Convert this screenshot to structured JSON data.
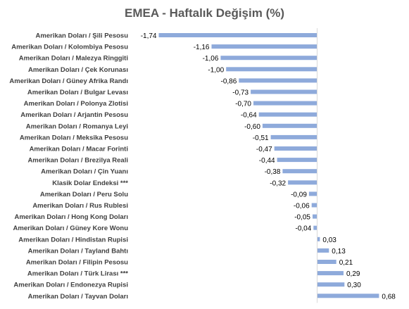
{
  "chart_data": {
    "type": "bar",
    "orientation": "horizontal",
    "title": "EMEA - Haftalık Değişim (%)",
    "xlabel": "",
    "ylabel": "",
    "xlim": [
      -1.8,
      0.7
    ],
    "grid": false,
    "legend": "none",
    "bar_color": "#8EAADB",
    "categories": [
      "Amerikan Doları / Şili Pesosu",
      "Amerikan Doları / Kolombiya Pesosu",
      "Amerikan Doları / Malezya Ringgiti",
      "Amerikan Doları / Çek Korunası",
      "Amerikan Doları / Güney Afrika Randı",
      "Amerikan Doları / Bulgar Levası",
      "Amerikan Doları / Polonya Zlotisi",
      "Amerikan Doları / Arjantin Pesosu",
      "Amerikan Doları / Romanya Leyi",
      "Amerikan Doları / Meksika Pesosu",
      "Amerikan Doları / Macar Forinti",
      "Amerikan Doları / Brezilya Reali",
      "Amerikan Doları / Çin Yuanı",
      "Klasik Dolar Endeksi ***",
      "Amerikan Doları / Peru Solu",
      "Amerikan Doları / Rus Rublesi",
      "Amerikan Doları / Hong Kong Doları",
      "Amerikan Doları / Güney Kore Wonu",
      "Amerikan Doları / Hindistan Rupisi",
      "Amerikan Doları / Tayland Bahtı",
      "Amerikan Doları / Filipin Pesosu",
      "Amerikan Doları / Türk Lirası ***",
      "Amerikan Doları / Endonezya Rupisi",
      "Amerikan Doları / Tayvan Doları"
    ],
    "values": [
      -1.74,
      -1.16,
      -1.06,
      -1.0,
      -0.86,
      -0.73,
      -0.7,
      -0.64,
      -0.6,
      -0.51,
      -0.47,
      -0.44,
      -0.38,
      -0.32,
      -0.09,
      -0.06,
      -0.05,
      -0.04,
      0.03,
      0.13,
      0.21,
      0.29,
      0.3,
      0.68
    ],
    "value_labels": [
      "-1,74",
      "-1,16",
      "-1,06",
      "-1,00",
      "-0,86",
      "-0,73",
      "-0,70",
      "-0,64",
      "-0,60",
      "-0,51",
      "-0,47",
      "-0,44",
      "-0,38",
      "-0,32",
      "-0,09",
      "-0,06",
      "-0,05",
      "-0,04",
      "0,03",
      "0,13",
      "0,21",
      "0,29",
      "0,30",
      "0,68"
    ]
  }
}
